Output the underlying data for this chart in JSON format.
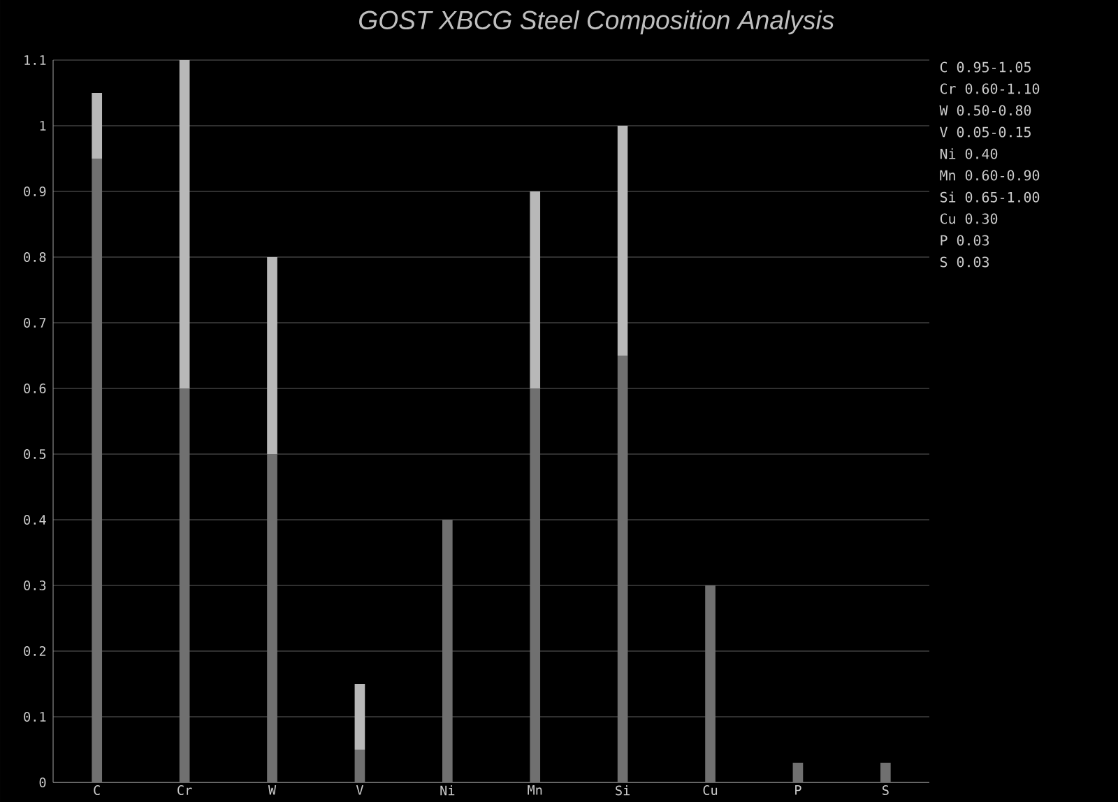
{
  "chart_data": {
    "type": "bar",
    "stacked": true,
    "title": "GOST XBCG Steel Composition Analysis",
    "categories": [
      "C",
      "Cr",
      "W",
      "V",
      "Ni",
      "Mn",
      "Si",
      "Cu",
      "P",
      "S"
    ],
    "series": [
      {
        "color": "#707070",
        "values": [
          0.95,
          0.6,
          0.5,
          0.05,
          0.4,
          0.6,
          0.65,
          0.3,
          0.03,
          0.03
        ]
      },
      {
        "color": "#b8b8b8",
        "values": [
          0.1,
          0.5,
          0.3,
          0.1,
          null,
          0.3,
          0.35,
          null,
          null,
          null
        ]
      }
    ],
    "ylim": [
      0,
      1.1
    ],
    "yticks": [
      0,
      0.1,
      0.2,
      0.3,
      0.4,
      0.5,
      0.6,
      0.7,
      0.8,
      0.9,
      1,
      1.1
    ],
    "grid": "y",
    "annotations": [
      "C 0.95-1.05",
      "Cr 0.60-1.10",
      "W 0.50-0.80",
      "V 0.05-0.15",
      "Ni 0.40",
      "Mn 0.60-0.90",
      "Si 0.65-1.00",
      "Cu 0.30",
      "P 0.03",
      "S 0.03"
    ]
  }
}
